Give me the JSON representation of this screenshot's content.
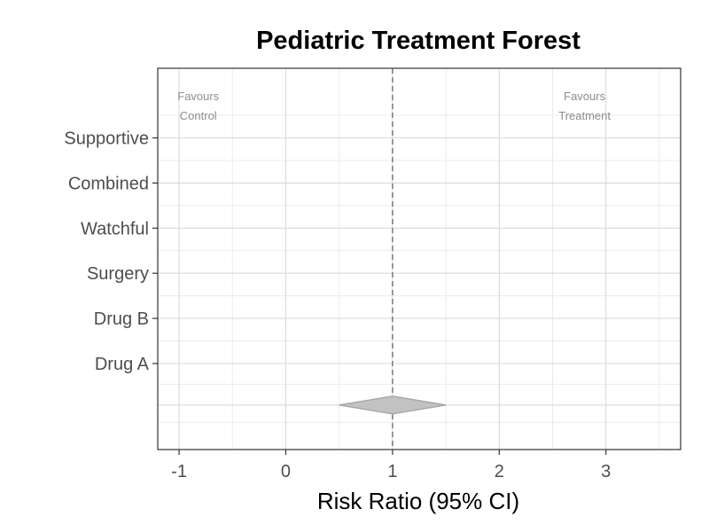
{
  "chart_data": {
    "type": "forest",
    "title": "Pediatric Treatment Forest",
    "xlabel": "Risk Ratio (95% CI)",
    "ylabel": "",
    "xlim": [
      -1.2,
      3.7
    ],
    "x_ticks": [
      -1,
      0,
      1,
      2,
      3
    ],
    "categories": [
      "Drug A",
      "Drug B",
      "Surgery",
      "Watchful",
      "Combined",
      "Supportive"
    ],
    "reference_line": 1,
    "annotations": {
      "left": [
        "Favours",
        "Control"
      ],
      "right": [
        "Favours",
        "Treatment"
      ]
    },
    "summary": {
      "estimate": 1.0,
      "ci_low": 0.5,
      "ci_high": 1.5
    },
    "grid": true,
    "colors": {
      "summary_fill": "#c2c2c2",
      "summary_stroke": "#a6a6a6",
      "reference_line": "#7f7f7f",
      "grid_major": "#d9d9d9",
      "grid_minor": "#ebebeb",
      "panel_border": "#333333"
    }
  }
}
